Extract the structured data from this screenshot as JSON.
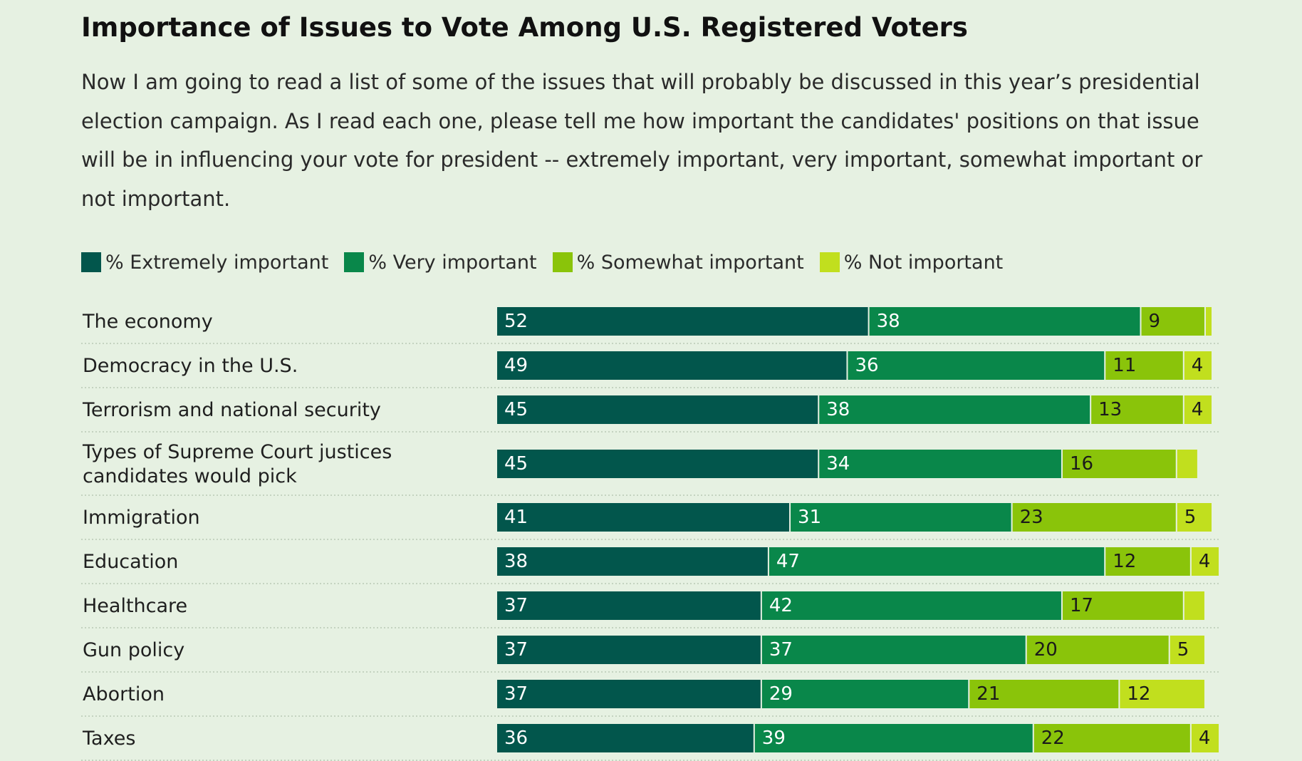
{
  "colors": {
    "extremely": "#02564c",
    "very": "#09874a",
    "somewhat": "#8ac40a",
    "not": "#c1df1e"
  },
  "chart_data": {
    "type": "bar",
    "orientation": "horizontal",
    "stacked": true,
    "title": "Importance of Issues to Vote Among U.S. Registered Voters",
    "subtitle": "Now I am going to read a list of some of the issues that will probably be discussed in this year’s presidential election campaign. As I read each one, please tell me how important the candidates' positions on that issue will be in influencing your vote for president -- extremely important, very important, somewhat important or not important.",
    "legend_position": "top-left",
    "grid": false,
    "xlim": [
      0,
      100
    ],
    "categories": [
      "The economy",
      "Democracy in the U.S.",
      "Terrorism and national security",
      "Types of Supreme Court justices candidates would pick",
      "Immigration",
      "Education",
      "Healthcare",
      "Gun policy",
      "Abortion",
      "Taxes"
    ],
    "series": [
      {
        "name": "% Extremely important",
        "color": "#02564c",
        "values": [
          52,
          49,
          45,
          45,
          41,
          38,
          37,
          37,
          37,
          36
        ],
        "labels": [
          "52",
          "49",
          "45",
          "45",
          "41",
          "38",
          "37",
          "37",
          "37",
          "36"
        ]
      },
      {
        "name": "% Very important",
        "color": "#09874a",
        "values": [
          38,
          36,
          38,
          34,
          31,
          47,
          42,
          37,
          29,
          39
        ],
        "labels": [
          "38",
          "36",
          "38",
          "34",
          "31",
          "47",
          "42",
          "37",
          "29",
          "39"
        ]
      },
      {
        "name": "% Somewhat important",
        "color": "#8ac40a",
        "values": [
          9,
          11,
          13,
          16,
          23,
          12,
          17,
          20,
          21,
          22
        ],
        "labels": [
          "9",
          "11",
          "13",
          "16",
          "23",
          "12",
          "17",
          "20",
          "21",
          "22"
        ]
      },
      {
        "name": "% Not important",
        "color": "#c1df1e",
        "values": [
          1,
          4,
          4,
          3,
          5,
          4,
          3,
          5,
          12,
          4
        ],
        "labels": [
          "",
          "4",
          "4",
          "",
          "5",
          "4",
          "",
          "5",
          "12",
          "4"
        ]
      }
    ]
  }
}
